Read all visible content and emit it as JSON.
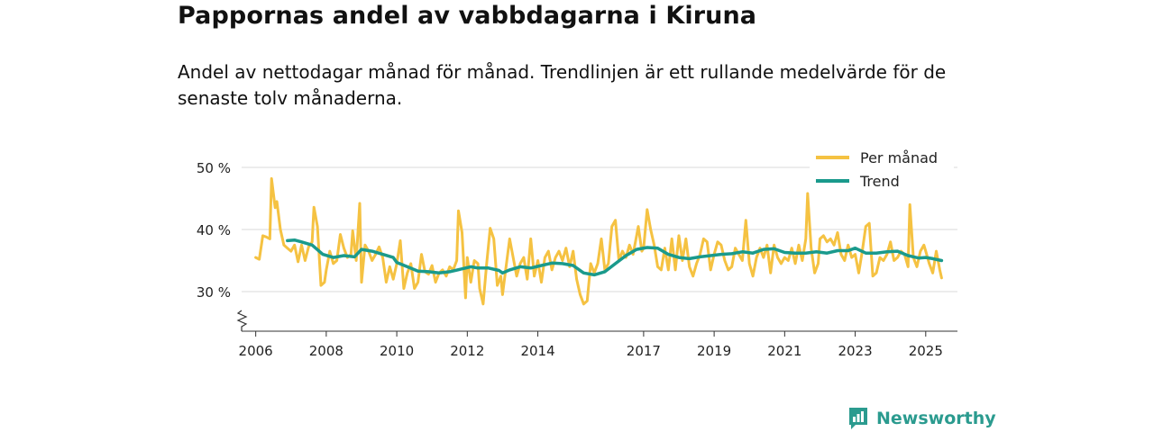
{
  "title": "Pappornas andel av vabbdagarna i Kiruna",
  "subtitle": "Andel av nettodagar månad för månad. Trendlinjen är ett rullande medelvärde för de senaste tolv månaderna.",
  "brand": {
    "name": "Newsworthy"
  },
  "colors": {
    "monthly": "#f5c242",
    "trend": "#1a9a8c",
    "grid": "#d9d9d9",
    "axis": "#333333",
    "brand": "#2b9b8f"
  },
  "chart_data": {
    "type": "line",
    "title": "Pappornas andel av vabbdagarna i Kiruna",
    "xlabel": "",
    "ylabel": "",
    "xlim": [
      2005.6,
      2025.9
    ],
    "ylim": [
      27,
      50
    ],
    "yticks": [
      30,
      40,
      50
    ],
    "ytick_labels": [
      "30 %",
      "40 %",
      "50 %"
    ],
    "xticks": [
      2006,
      2008,
      2010,
      2012,
      2014,
      2017,
      2019,
      2021,
      2023,
      2025
    ],
    "xtick_labels": [
      "2006",
      "2008",
      "2010",
      "2012",
      "2014",
      "2017",
      "2019",
      "2021",
      "2023",
      "2025"
    ],
    "axis_break": true,
    "grid": true,
    "legend": {
      "position": "top-right",
      "entries": [
        "Per månad",
        "Trend"
      ]
    },
    "series": [
      {
        "name": "Per månad",
        "points": [
          [
            2006.0,
            35.5
          ],
          [
            2006.1,
            35.2
          ],
          [
            2006.2,
            39.0
          ],
          [
            2006.3,
            38.8
          ],
          [
            2006.4,
            38.5
          ],
          [
            2006.45,
            48.2
          ],
          [
            2006.55,
            43.5
          ],
          [
            2006.6,
            44.5
          ],
          [
            2006.7,
            40.0
          ],
          [
            2006.8,
            37.5
          ],
          [
            2006.9,
            37.0
          ],
          [
            2007.0,
            36.5
          ],
          [
            2007.1,
            37.5
          ],
          [
            2007.2,
            34.8
          ],
          [
            2007.3,
            37.5
          ],
          [
            2007.4,
            35.0
          ],
          [
            2007.5,
            37.2
          ],
          [
            2007.6,
            38.0
          ],
          [
            2007.65,
            43.6
          ],
          [
            2007.75,
            40.5
          ],
          [
            2007.85,
            31.0
          ],
          [
            2007.95,
            31.5
          ],
          [
            2008.0,
            33.5
          ],
          [
            2008.1,
            36.5
          ],
          [
            2008.2,
            34.5
          ],
          [
            2008.3,
            35.0
          ],
          [
            2008.4,
            39.2
          ],
          [
            2008.5,
            37.0
          ],
          [
            2008.6,
            35.5
          ],
          [
            2008.7,
            36.0
          ],
          [
            2008.75,
            39.8
          ],
          [
            2008.85,
            35.0
          ],
          [
            2008.95,
            44.2
          ],
          [
            2009.0,
            31.5
          ],
          [
            2009.1,
            37.5
          ],
          [
            2009.2,
            36.5
          ],
          [
            2009.3,
            35.0
          ],
          [
            2009.4,
            36.0
          ],
          [
            2009.5,
            37.2
          ],
          [
            2009.6,
            35.5
          ],
          [
            2009.7,
            31.5
          ],
          [
            2009.8,
            34.0
          ],
          [
            2009.9,
            32.0
          ],
          [
            2010.0,
            34.5
          ],
          [
            2010.1,
            38.2
          ],
          [
            2010.2,
            30.5
          ],
          [
            2010.3,
            33.0
          ],
          [
            2010.4,
            34.5
          ],
          [
            2010.5,
            30.5
          ],
          [
            2010.6,
            31.5
          ],
          [
            2010.7,
            36.0
          ],
          [
            2010.8,
            33.2
          ],
          [
            2010.9,
            32.8
          ],
          [
            2011.0,
            34.2
          ],
          [
            2011.1,
            31.5
          ],
          [
            2011.2,
            33.0
          ],
          [
            2011.3,
            33.5
          ],
          [
            2011.4,
            32.5
          ],
          [
            2011.5,
            34.0
          ],
          [
            2011.6,
            33.5
          ],
          [
            2011.7,
            35.0
          ],
          [
            2011.75,
            43.0
          ],
          [
            2011.85,
            39.5
          ],
          [
            2011.95,
            29.0
          ],
          [
            2012.0,
            35.5
          ],
          [
            2012.1,
            31.5
          ],
          [
            2012.2,
            35.0
          ],
          [
            2012.3,
            34.5
          ],
          [
            2012.35,
            30.5
          ],
          [
            2012.45,
            28.0
          ],
          [
            2012.55,
            34.5
          ],
          [
            2012.65,
            40.2
          ],
          [
            2012.75,
            38.5
          ],
          [
            2012.85,
            31.0
          ],
          [
            2012.95,
            32.5
          ],
          [
            2013.0,
            29.5
          ],
          [
            2013.1,
            34.0
          ],
          [
            2013.2,
            38.5
          ],
          [
            2013.3,
            35.5
          ],
          [
            2013.4,
            32.5
          ],
          [
            2013.5,
            34.5
          ],
          [
            2013.6,
            35.5
          ],
          [
            2013.7,
            32.0
          ],
          [
            2013.8,
            38.5
          ],
          [
            2013.9,
            32.5
          ],
          [
            2014.0,
            35.0
          ],
          [
            2014.1,
            31.5
          ],
          [
            2014.2,
            35.5
          ],
          [
            2014.3,
            36.5
          ],
          [
            2014.4,
            33.5
          ],
          [
            2014.5,
            35.5
          ],
          [
            2014.6,
            36.5
          ],
          [
            2014.7,
            35.0
          ],
          [
            2014.8,
            37.0
          ],
          [
            2014.9,
            34.0
          ],
          [
            2015.0,
            36.5
          ],
          [
            2015.1,
            32.0
          ],
          [
            2015.2,
            29.5
          ],
          [
            2015.3,
            28.0
          ],
          [
            2015.4,
            28.5
          ],
          [
            2015.5,
            34.5
          ],
          [
            2015.6,
            33.0
          ],
          [
            2015.7,
            34.5
          ],
          [
            2015.8,
            38.5
          ],
          [
            2015.9,
            33.5
          ],
          [
            2016.0,
            34.5
          ],
          [
            2016.1,
            40.5
          ],
          [
            2016.2,
            41.5
          ],
          [
            2016.3,
            35.0
          ],
          [
            2016.4,
            36.5
          ],
          [
            2016.5,
            35.5
          ],
          [
            2016.6,
            37.5
          ],
          [
            2016.7,
            36.0
          ],
          [
            2016.8,
            39.0
          ],
          [
            2016.85,
            40.5
          ],
          [
            2016.95,
            36.5
          ],
          [
            2017.0,
            37.0
          ],
          [
            2017.1,
            43.2
          ],
          [
            2017.2,
            40.0
          ],
          [
            2017.3,
            37.5
          ],
          [
            2017.4,
            34.0
          ],
          [
            2017.5,
            33.5
          ],
          [
            2017.6,
            37.0
          ],
          [
            2017.7,
            33.5
          ],
          [
            2017.8,
            38.5
          ],
          [
            2017.9,
            33.5
          ],
          [
            2018.0,
            39.0
          ],
          [
            2018.1,
            35.0
          ],
          [
            2018.2,
            38.5
          ],
          [
            2018.3,
            34.0
          ],
          [
            2018.4,
            32.5
          ],
          [
            2018.5,
            34.5
          ],
          [
            2018.6,
            36.0
          ],
          [
            2018.7,
            38.5
          ],
          [
            2018.8,
            38.0
          ],
          [
            2018.9,
            33.5
          ],
          [
            2019.0,
            36.0
          ],
          [
            2019.1,
            38.0
          ],
          [
            2019.2,
            37.5
          ],
          [
            2019.3,
            35.0
          ],
          [
            2019.4,
            33.5
          ],
          [
            2019.5,
            34.0
          ],
          [
            2019.6,
            37.0
          ],
          [
            2019.7,
            36.0
          ],
          [
            2019.8,
            35.0
          ],
          [
            2019.9,
            41.5
          ],
          [
            2020.0,
            34.5
          ],
          [
            2020.1,
            32.5
          ],
          [
            2020.2,
            35.5
          ],
          [
            2020.3,
            37.0
          ],
          [
            2020.4,
            35.5
          ],
          [
            2020.5,
            37.5
          ],
          [
            2020.6,
            33.0
          ],
          [
            2020.7,
            37.5
          ],
          [
            2020.8,
            35.5
          ],
          [
            2020.9,
            34.5
          ],
          [
            2021.0,
            35.5
          ],
          [
            2021.1,
            35.0
          ],
          [
            2021.2,
            37.0
          ],
          [
            2021.3,
            34.5
          ],
          [
            2021.4,
            37.5
          ],
          [
            2021.5,
            35.0
          ],
          [
            2021.6,
            38.5
          ],
          [
            2021.65,
            45.8
          ],
          [
            2021.75,
            37.0
          ],
          [
            2021.85,
            33.0
          ],
          [
            2021.95,
            34.5
          ],
          [
            2022.0,
            38.5
          ],
          [
            2022.1,
            39.0
          ],
          [
            2022.2,
            38.0
          ],
          [
            2022.3,
            38.5
          ],
          [
            2022.4,
            37.5
          ],
          [
            2022.5,
            39.5
          ],
          [
            2022.6,
            36.0
          ],
          [
            2022.7,
            35.0
          ],
          [
            2022.8,
            37.5
          ],
          [
            2022.9,
            35.5
          ],
          [
            2023.0,
            36.0
          ],
          [
            2023.1,
            33.0
          ],
          [
            2023.2,
            36.5
          ],
          [
            2023.3,
            40.5
          ],
          [
            2023.4,
            41.0
          ],
          [
            2023.5,
            32.5
          ],
          [
            2023.6,
            33.0
          ],
          [
            2023.7,
            35.5
          ],
          [
            2023.8,
            35.0
          ],
          [
            2023.9,
            36.0
          ],
          [
            2024.0,
            38.0
          ],
          [
            2024.1,
            35.0
          ],
          [
            2024.2,
            35.5
          ],
          [
            2024.3,
            36.5
          ],
          [
            2024.4,
            36.0
          ],
          [
            2024.5,
            34.0
          ],
          [
            2024.55,
            44.0
          ],
          [
            2024.65,
            35.5
          ],
          [
            2024.75,
            34.0
          ],
          [
            2024.85,
            36.5
          ],
          [
            2024.95,
            37.5
          ],
          [
            2025.0,
            36.5
          ],
          [
            2025.1,
            34.5
          ],
          [
            2025.2,
            33.0
          ],
          [
            2025.3,
            36.5
          ],
          [
            2025.4,
            33.5
          ],
          [
            2025.45,
            32.2
          ]
        ]
      },
      {
        "name": "Trend",
        "points": [
          [
            2006.9,
            38.2
          ],
          [
            2007.1,
            38.3
          ],
          [
            2007.3,
            38.0
          ],
          [
            2007.6,
            37.5
          ],
          [
            2007.9,
            36.0
          ],
          [
            2008.2,
            35.5
          ],
          [
            2008.5,
            35.8
          ],
          [
            2008.8,
            35.6
          ],
          [
            2009.0,
            36.8
          ],
          [
            2009.3,
            36.5
          ],
          [
            2009.6,
            36.0
          ],
          [
            2009.9,
            35.5
          ],
          [
            2010.0,
            34.7
          ],
          [
            2010.3,
            34.0
          ],
          [
            2010.6,
            33.3
          ],
          [
            2010.9,
            33.2
          ],
          [
            2011.2,
            33.0
          ],
          [
            2011.5,
            33.2
          ],
          [
            2011.8,
            33.6
          ],
          [
            2012.1,
            34.0
          ],
          [
            2012.3,
            33.8
          ],
          [
            2012.6,
            33.8
          ],
          [
            2012.9,
            33.4
          ],
          [
            2013.0,
            33.0
          ],
          [
            2013.2,
            33.5
          ],
          [
            2013.5,
            34.0
          ],
          [
            2013.8,
            33.8
          ],
          [
            2014.1,
            34.2
          ],
          [
            2014.4,
            34.6
          ],
          [
            2014.7,
            34.5
          ],
          [
            2015.0,
            34.2
          ],
          [
            2015.3,
            33.0
          ],
          [
            2015.6,
            32.7
          ],
          [
            2015.9,
            33.2
          ],
          [
            2016.2,
            34.5
          ],
          [
            2016.5,
            35.8
          ],
          [
            2016.8,
            36.8
          ],
          [
            2017.1,
            37.1
          ],
          [
            2017.4,
            37.0
          ],
          [
            2017.7,
            36.0
          ],
          [
            2018.0,
            35.5
          ],
          [
            2018.3,
            35.3
          ],
          [
            2018.6,
            35.6
          ],
          [
            2018.9,
            35.8
          ],
          [
            2019.2,
            36.0
          ],
          [
            2019.5,
            36.1
          ],
          [
            2019.8,
            36.4
          ],
          [
            2020.1,
            36.2
          ],
          [
            2020.4,
            36.8
          ],
          [
            2020.7,
            36.9
          ],
          [
            2021.0,
            36.3
          ],
          [
            2021.3,
            36.2
          ],
          [
            2021.6,
            36.2
          ],
          [
            2021.9,
            36.4
          ],
          [
            2022.2,
            36.2
          ],
          [
            2022.5,
            36.6
          ],
          [
            2022.8,
            36.6
          ],
          [
            2023.0,
            37.0
          ],
          [
            2023.3,
            36.2
          ],
          [
            2023.6,
            36.2
          ],
          [
            2023.9,
            36.4
          ],
          [
            2024.2,
            36.5
          ],
          [
            2024.5,
            35.8
          ],
          [
            2024.8,
            35.4
          ],
          [
            2025.0,
            35.5
          ],
          [
            2025.2,
            35.3
          ],
          [
            2025.45,
            35.0
          ]
        ]
      }
    ]
  }
}
